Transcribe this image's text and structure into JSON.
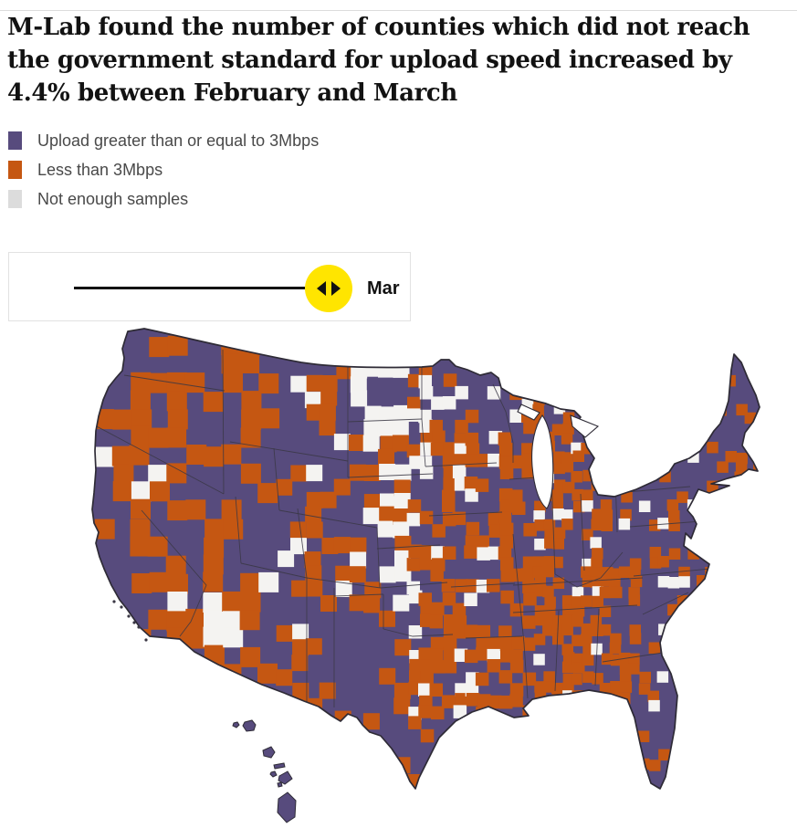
{
  "headline": {
    "text": "M-Lab found the number of counties which did not reach the government standard for upload speed increased by 4.4% between February and March"
  },
  "legend": {
    "items": [
      {
        "label": "Upload greater than or equal to 3Mbps",
        "color": "#574b7d"
      },
      {
        "label": "Less than 3Mbps",
        "color": "#c55712"
      },
      {
        "label": "Not enough samples",
        "color": "#dcdcdc"
      }
    ]
  },
  "slider": {
    "current_value": "Mar",
    "knob_color": "#ffe500",
    "track_color": "#121212"
  },
  "map": {
    "type": "choropleth",
    "region": "United States counties with Hawaii inset",
    "month_shown": "Mar",
    "classes": [
      {
        "name": "Upload greater than or equal to 3Mbps",
        "color": "#574b7d"
      },
      {
        "name": "Less than 3Mbps",
        "color": "#c55712"
      },
      {
        "name": "Not enough samples",
        "color": "#f4f3f1"
      }
    ],
    "border_color": "#2e2b36",
    "water_color": "#ffffff"
  }
}
